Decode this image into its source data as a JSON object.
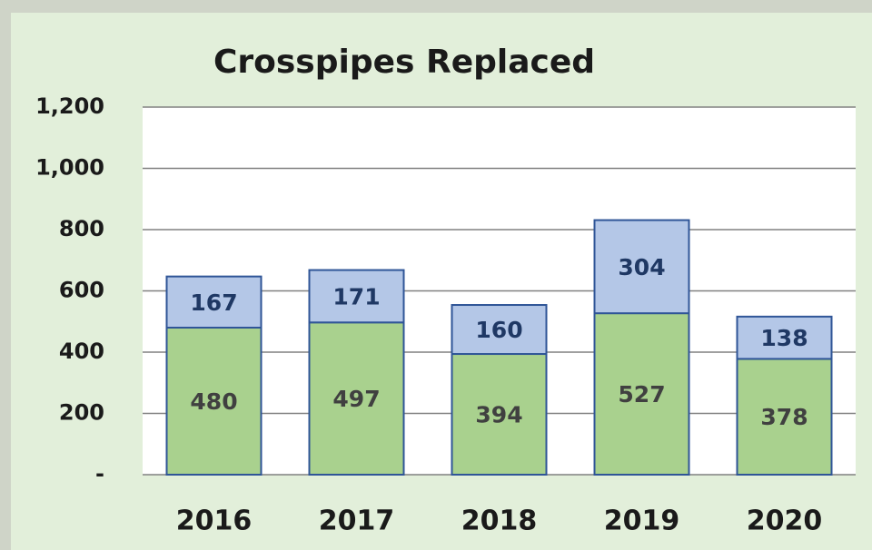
{
  "chart_data": {
    "type": "stacked-bar",
    "title": "Crosspipes Replaced",
    "categories": [
      "2016",
      "2017",
      "2018",
      "2019",
      "2020"
    ],
    "series": [
      {
        "color": "#a9d18e",
        "values": [
          480,
          497,
          394,
          527,
          378
        ]
      },
      {
        "color": "#b4c7e7",
        "values": [
          167,
          171,
          160,
          304,
          138
        ]
      }
    ],
    "ylim": [
      0,
      1200
    ],
    "yticks": [
      {
        "value": 0,
        "label": "-"
      },
      200,
      400,
      600,
      800,
      {
        "value": 1000,
        "label": "1,000"
      },
      {
        "value": 1200,
        "label": "1,200"
      }
    ],
    "grid": true
  }
}
